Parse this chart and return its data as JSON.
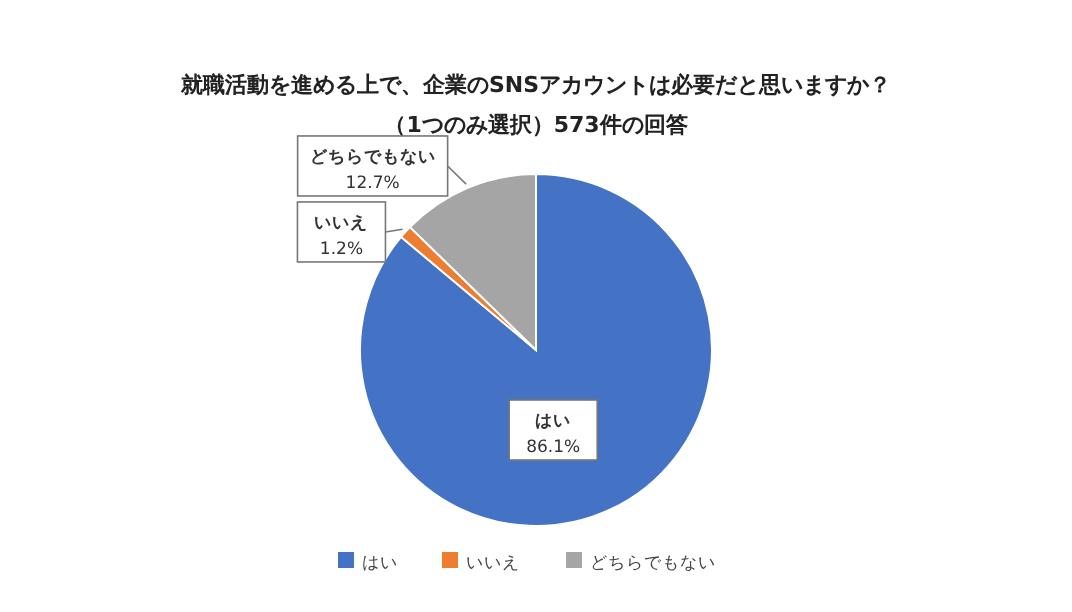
{
  "chart_data": {
    "type": "pie",
    "title": "就職活動を進める上で、企業のSNSアカウントは必要だと思いますか？",
    "subtitle": "（1つのみ選択）573件の回答",
    "categories": [
      "はい",
      "いいえ",
      "どちらでもない"
    ],
    "values": [
      86.1,
      1.2,
      12.7
    ],
    "colors": [
      "#4472c4",
      "#ed7d31",
      "#a5a5a5"
    ],
    "value_labels": [
      "86.1%",
      "1.2%",
      "12.7%"
    ],
    "legend": "bottom"
  }
}
